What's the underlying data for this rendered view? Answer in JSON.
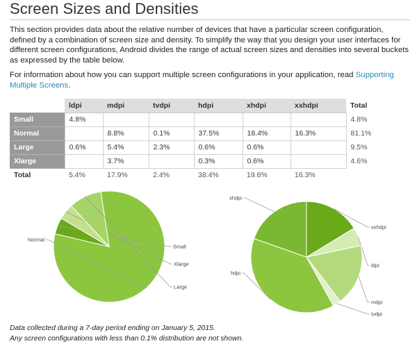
{
  "page": {
    "title": "Screen Sizes and Densities",
    "intro": "This section provides data about the relative number of devices that have a particular screen configuration, defined by a combination of screen size and density. To simplify the way that you design your user interfaces for different screen configurations, Android divides the range of actual screen sizes and densities into several buckets as expressed by the table below.",
    "info_prefix": "For information about how you can support multiple screen configurations in your application, read ",
    "info_link": "Supporting Multiple Screens",
    "info_suffix": ".",
    "footnote_1": "Data collected during a 7-day period ending on January 5, 2015.",
    "footnote_2": "Any screen configurations with less than 0.1% distribution are not shown."
  },
  "table": {
    "columns": [
      "ldpi",
      "mdpi",
      "tvdpi",
      "hdpi",
      "xhdpi",
      "xxhdpi"
    ],
    "total_label": "Total",
    "rows": [
      {
        "label": "Small",
        "cells": [
          "4.8%",
          "",
          "",
          "",
          "",
          ""
        ],
        "total": "4.8%"
      },
      {
        "label": "Normal",
        "cells": [
          "",
          "8.8%",
          "0.1%",
          "37.5%",
          "18.4%",
          "16.3%"
        ],
        "total": "81.1%"
      },
      {
        "label": "Large",
        "cells": [
          "0.6%",
          "5.4%",
          "2.3%",
          "0.6%",
          "0.6%",
          ""
        ],
        "total": "9.5%"
      },
      {
        "label": "Xlarge",
        "cells": [
          "",
          "3.7%",
          "",
          "0.3%",
          "0.6%",
          ""
        ],
        "total": "4.6%"
      }
    ],
    "totals": [
      "5.4%",
      "17.9%",
      "2.4%",
      "38.4%",
      "19.6%",
      "16.3%"
    ]
  },
  "chart_data": [
    {
      "type": "pie",
      "categories": [
        "Normal",
        "Small",
        "Xlarge",
        "Large"
      ],
      "values": [
        81.1,
        4.8,
        4.6,
        9.5
      ],
      "colors": [
        "#8cc63f",
        "#6aaa1a",
        "#c2e08f",
        "#a6d466"
      ]
    },
    {
      "type": "pie",
      "categories": [
        "xxhdpi",
        "ldpi",
        "mdpi",
        "tvdpi",
        "hdpi",
        "xhdpi"
      ],
      "values": [
        16.3,
        5.4,
        17.9,
        2.4,
        38.4,
        19.6
      ],
      "colors": [
        "#6aaa1a",
        "#d6ebb3",
        "#b2da7c",
        "#e2f0cc",
        "#8cc63f",
        "#7ab831"
      ]
    }
  ]
}
